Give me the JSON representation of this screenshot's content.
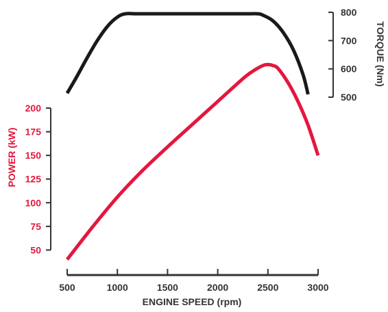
{
  "chart_data": {
    "type": "line",
    "xlabel": "ENGINE SPEED (rpm)",
    "x_ticks": [
      500,
      1000,
      1500,
      2000,
      2500,
      3000
    ],
    "power_axis": {
      "label": "POWER (kW)",
      "ticks": [
        50,
        75,
        100,
        125,
        150,
        175,
        200
      ],
      "ylim": [
        25,
        200
      ]
    },
    "torque_axis": {
      "label": "TORQUE (Nm)",
      "ticks": [
        500,
        600,
        700,
        800
      ],
      "ylim": [
        500,
        800
      ]
    },
    "series": [
      {
        "axis": "power",
        "color": "#e4173e",
        "x": [
          500,
          750,
          1000,
          1250,
          1500,
          1750,
          2000,
          2250,
          2350,
          2450,
          2500,
          2550,
          2600,
          2700,
          2800,
          2900,
          3000
        ],
        "values": [
          40,
          74,
          106,
          134,
          159,
          183,
          207,
          231,
          239,
          245,
          246,
          245,
          242,
          227,
          207,
          182,
          150
        ]
      },
      {
        "axis": "torque",
        "color": "#1a1a1a",
        "x": [
          500,
          600,
          700,
          800,
          900,
          1000,
          1080,
          1200,
          1500,
          2000,
          2300,
          2400,
          2450,
          2550,
          2650,
          2750,
          2850,
          2900
        ],
        "values": [
          514,
          575,
          640,
          700,
          750,
          783,
          795,
          795,
          795,
          795,
          795,
          795,
          790,
          770,
          730,
          670,
          580,
          510
        ]
      }
    ]
  }
}
